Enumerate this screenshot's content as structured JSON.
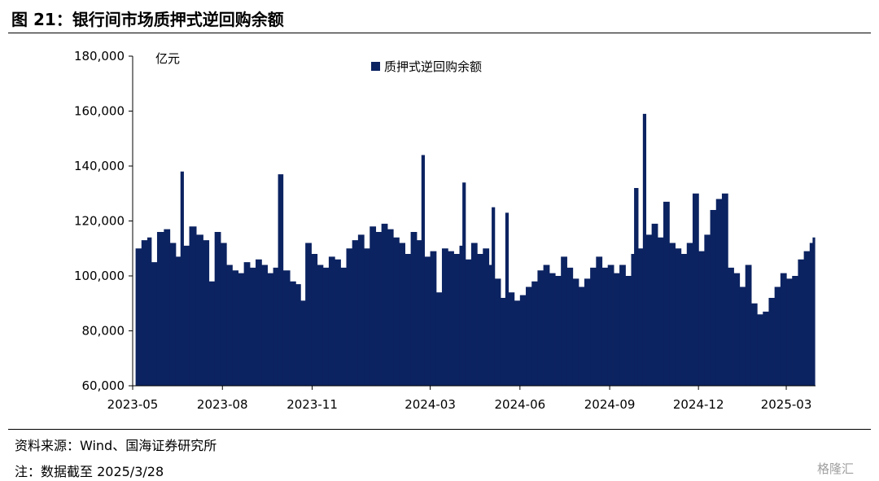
{
  "header": {
    "title": "图 21：银行间市场质押式逆回购余额"
  },
  "footer": {
    "source": "资料来源：Wind、国海证券研究所",
    "note": "注：数据截至 2025/3/28",
    "watermark": "格隆汇"
  },
  "colors": {
    "bar": "#0c2361",
    "axis": "#000000"
  },
  "chart_data": {
    "type": "bar",
    "title": "",
    "unit_label": "亿元",
    "legend": {
      "entries": [
        "质押式逆回购余额"
      ],
      "placement": "top-center"
    },
    "ylim": [
      60000,
      180000
    ],
    "y_ticks": [
      "180,000",
      "160,000",
      "140,000",
      "120,000",
      "100,000",
      "80,000",
      "60,000"
    ],
    "x_ticks": [
      "2023-05",
      "2023-08",
      "2023-11",
      "2024-03",
      "2024-06",
      "2024-09",
      "2024-12",
      "2025-03"
    ],
    "grid": false,
    "series": [
      {
        "name": "质押式逆回购余额",
        "points": [
          [
            "2023-05-04",
            110000
          ],
          [
            "2023-05-10",
            113000
          ],
          [
            "2023-05-16",
            114000
          ],
          [
            "2023-05-20",
            105000
          ],
          [
            "2023-05-26",
            116000
          ],
          [
            "2023-06-02",
            117000
          ],
          [
            "2023-06-08",
            112000
          ],
          [
            "2023-06-14",
            107000
          ],
          [
            "2023-06-19",
            138000
          ],
          [
            "2023-06-22",
            111000
          ],
          [
            "2023-06-28",
            118000
          ],
          [
            "2023-07-05",
            115000
          ],
          [
            "2023-07-12",
            113000
          ],
          [
            "2023-07-18",
            98000
          ],
          [
            "2023-07-24",
            116000
          ],
          [
            "2023-07-30",
            112000
          ],
          [
            "2023-08-05",
            104000
          ],
          [
            "2023-08-11",
            102000
          ],
          [
            "2023-08-17",
            101000
          ],
          [
            "2023-08-23",
            105000
          ],
          [
            "2023-08-29",
            103000
          ],
          [
            "2023-09-04",
            106000
          ],
          [
            "2023-09-10",
            104000
          ],
          [
            "2023-09-16",
            101000
          ],
          [
            "2023-09-22",
            103000
          ],
          [
            "2023-09-27",
            137000
          ],
          [
            "2023-10-02",
            102000
          ],
          [
            "2023-10-09",
            98000
          ],
          [
            "2023-10-15",
            97000
          ],
          [
            "2023-10-20",
            91000
          ],
          [
            "2023-10-25",
            112000
          ],
          [
            "2023-10-31",
            108000
          ],
          [
            "2023-11-06",
            104000
          ],
          [
            "2023-11-12",
            103000
          ],
          [
            "2023-11-18",
            107000
          ],
          [
            "2023-11-24",
            106000
          ],
          [
            "2023-11-30",
            103000
          ],
          [
            "2023-12-06",
            110000
          ],
          [
            "2023-12-12",
            113000
          ],
          [
            "2023-12-18",
            115000
          ],
          [
            "2023-12-24",
            110000
          ],
          [
            "2023-12-30",
            118000
          ],
          [
            "2024-01-05",
            116000
          ],
          [
            "2024-01-11",
            119000
          ],
          [
            "2024-01-17",
            117000
          ],
          [
            "2024-01-23",
            114000
          ],
          [
            "2024-01-29",
            112000
          ],
          [
            "2024-02-04",
            108000
          ],
          [
            "2024-02-10",
            116000
          ],
          [
            "2024-02-16",
            113000
          ],
          [
            "2024-02-21",
            144000
          ],
          [
            "2024-02-24",
            107000
          ],
          [
            "2024-03-01",
            109000
          ],
          [
            "2024-03-07",
            94000
          ],
          [
            "2024-03-13",
            110000
          ],
          [
            "2024-03-19",
            109000
          ],
          [
            "2024-03-25",
            108000
          ],
          [
            "2024-03-31",
            111000
          ],
          [
            "2024-04-03",
            134000
          ],
          [
            "2024-04-06",
            106000
          ],
          [
            "2024-04-12",
            112000
          ],
          [
            "2024-04-18",
            108000
          ],
          [
            "2024-04-24",
            110000
          ],
          [
            "2024-04-30",
            104000
          ],
          [
            "2024-05-03",
            125000
          ],
          [
            "2024-05-06",
            99000
          ],
          [
            "2024-05-12",
            92000
          ],
          [
            "2024-05-17",
            123000
          ],
          [
            "2024-05-20",
            94000
          ],
          [
            "2024-05-26",
            91000
          ],
          [
            "2024-06-01",
            93000
          ],
          [
            "2024-06-07",
            96000
          ],
          [
            "2024-06-13",
            98000
          ],
          [
            "2024-06-19",
            102000
          ],
          [
            "2024-06-25",
            104000
          ],
          [
            "2024-07-01",
            101000
          ],
          [
            "2024-07-07",
            100000
          ],
          [
            "2024-07-13",
            107000
          ],
          [
            "2024-07-19",
            103000
          ],
          [
            "2024-07-25",
            99000
          ],
          [
            "2024-07-31",
            96000
          ],
          [
            "2024-08-06",
            99000
          ],
          [
            "2024-08-12",
            103000
          ],
          [
            "2024-08-18",
            107000
          ],
          [
            "2024-08-24",
            103000
          ],
          [
            "2024-08-30",
            104000
          ],
          [
            "2024-09-05",
            101000
          ],
          [
            "2024-09-11",
            104000
          ],
          [
            "2024-09-17",
            100000
          ],
          [
            "2024-09-23",
            108000
          ],
          [
            "2024-09-26",
            132000
          ],
          [
            "2024-09-30",
            110000
          ],
          [
            "2024-10-05",
            159000
          ],
          [
            "2024-10-08",
            115000
          ],
          [
            "2024-10-14",
            119000
          ],
          [
            "2024-10-20",
            114000
          ],
          [
            "2024-10-26",
            127000
          ],
          [
            "2024-11-01",
            112000
          ],
          [
            "2024-11-07",
            110000
          ],
          [
            "2024-11-13",
            108000
          ],
          [
            "2024-11-19",
            112000
          ],
          [
            "2024-11-25",
            130000
          ],
          [
            "2024-12-01",
            109000
          ],
          [
            "2024-12-07",
            115000
          ],
          [
            "2024-12-13",
            124000
          ],
          [
            "2024-12-19",
            128000
          ],
          [
            "2024-12-25",
            130000
          ],
          [
            "2024-12-31",
            103000
          ],
          [
            "2025-01-06",
            101000
          ],
          [
            "2025-01-12",
            96000
          ],
          [
            "2025-01-18",
            104000
          ],
          [
            "2025-01-24",
            90000
          ],
          [
            "2025-01-30",
            86000
          ],
          [
            "2025-02-05",
            87000
          ],
          [
            "2025-02-11",
            92000
          ],
          [
            "2025-02-17",
            96000
          ],
          [
            "2025-02-23",
            101000
          ],
          [
            "2025-03-01",
            99000
          ],
          [
            "2025-03-07",
            100000
          ],
          [
            "2025-03-13",
            106000
          ],
          [
            "2025-03-19",
            109000
          ],
          [
            "2025-03-25",
            112000
          ],
          [
            "2025-03-28",
            114000
          ]
        ]
      }
    ]
  }
}
